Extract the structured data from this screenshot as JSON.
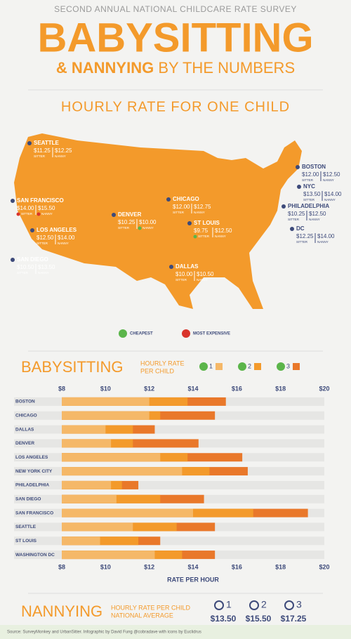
{
  "header": {
    "kicker": "SECOND ANNUAL NATIONAL CHILDCARE RATE SURVEY",
    "title": "BABYSITTING",
    "subtitle_bold": "& NANNYING",
    "subtitle_rest": "BY THE NUMBERS"
  },
  "map": {
    "title": "HOURLY RATE FOR ONE CHILD",
    "sitter_label": "SITTER",
    "nanny_label": "NANNY",
    "cities": [
      {
        "name": "SEATTLE",
        "sitter": "$11.25",
        "nanny": "$12.25"
      },
      {
        "name": "SAN FRANCISCO",
        "sitter": "$14.00",
        "nanny": "$15.50",
        "sitter_color": "#d9342b",
        "nanny_color": "#d9342b"
      },
      {
        "name": "LOS ANGELES",
        "sitter": "$12.50",
        "nanny": "$14.00"
      },
      {
        "name": "SAN DIEGO",
        "sitter": "$10.50",
        "nanny": "$13.50"
      },
      {
        "name": "DENVER",
        "sitter": "$10.25",
        "nanny": "$10.00",
        "nanny_color": "#5bb54a"
      },
      {
        "name": "DALLAS",
        "sitter": "$10.00",
        "nanny": "$10.50"
      },
      {
        "name": "ST LOUIS",
        "sitter": "$9.75",
        "nanny": "$12.50",
        "sitter_color": "#5bb54a"
      },
      {
        "name": "CHICAGO",
        "sitter": "$12.00",
        "nanny": "$12.75"
      },
      {
        "name": "BOSTON",
        "sitter": "$12.00",
        "nanny": "$12.50"
      },
      {
        "name": "NYC",
        "sitter": "$13.50",
        "nanny": "$14.00"
      },
      {
        "name": "PHILADELPHIA",
        "sitter": "$10.25",
        "nanny": "$12.50"
      },
      {
        "name": "DC",
        "sitter": "$12.25",
        "nanny": "$14.00"
      }
    ],
    "legend": [
      {
        "label": "CHEAPEST",
        "color": "#5bb54a"
      },
      {
        "label": "MOST EXPENSIVE",
        "color": "#d9342b"
      }
    ]
  },
  "chart_data": {
    "type": "bar",
    "orientation": "horizontal",
    "title": "BABYSITTING",
    "subtitle": [
      "HOURLY RATE",
      "PER CHILD"
    ],
    "x_label": "RATE PER HOUR",
    "categories": [
      "BOSTON",
      "CHICAGO",
      "DALLAS",
      "DENVER",
      "LOS ANGELES",
      "NEW YORK CITY",
      "PHILADELPHIA",
      "SAN DIEGO",
      "SAN FRANCISCO",
      "SEATTLE",
      "ST LOUIS",
      "WASHINGTON DC"
    ],
    "series": [
      {
        "name": "1",
        "color": "#f5b868",
        "values": [
          12.0,
          12.0,
          10.0,
          10.25,
          12.5,
          13.5,
          10.25,
          10.5,
          14.0,
          11.25,
          9.75,
          12.25
        ]
      },
      {
        "name": "2",
        "color": "#f39a2b",
        "values": [
          13.75,
          12.5,
          11.25,
          11.25,
          13.75,
          14.75,
          10.75,
          12.5,
          16.75,
          13.25,
          11.5,
          13.5
        ]
      },
      {
        "name": "3",
        "color": "#e9782a",
        "values": [
          15.5,
          15.0,
          12.25,
          14.25,
          16.25,
          16.5,
          11.5,
          14.5,
          19.25,
          15.0,
          12.5,
          15.0
        ]
      }
    ],
    "xlim": [
      8,
      20
    ],
    "xticks": [
      {
        "value": 8,
        "label": "$8"
      },
      {
        "value": 10,
        "label": "$10"
      },
      {
        "value": 12,
        "label": "$12"
      },
      {
        "value": 14,
        "label": "$14"
      },
      {
        "value": 16,
        "label": "$16"
      },
      {
        "value": 18,
        "label": "$18"
      },
      {
        "value": 20,
        "label": "$20"
      }
    ],
    "grid": false
  },
  "nannying": {
    "title": "NANNYING",
    "subtitle": [
      "HOURLY RATE PER CHILD",
      "NATIONAL AVERAGE"
    ],
    "items": [
      {
        "children": "1",
        "value": "$13.50"
      },
      {
        "children": "2",
        "value": "$15.50"
      },
      {
        "children": "3",
        "value": "$17.25"
      }
    ]
  },
  "footer": "Source: SurveyMonkey and UrbanSitter. Infographic by David Fung @cobradave with icons by Euclidrus"
}
